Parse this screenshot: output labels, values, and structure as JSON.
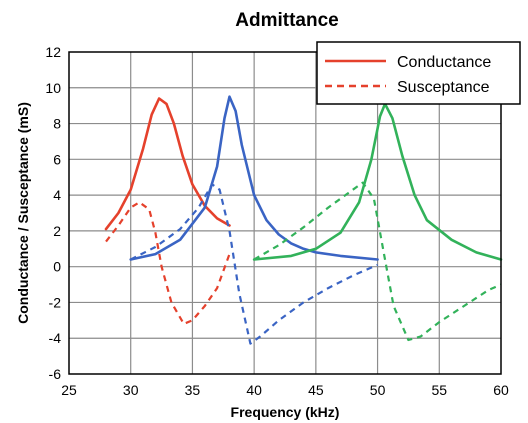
{
  "chart_data": {
    "type": "line",
    "title": "Admittance",
    "xlabel": "Frequency (kHz)",
    "ylabel": "Conductance / Susceptance  (mS)",
    "xlim": [
      25,
      60
    ],
    "ylim": [
      -6,
      12
    ],
    "xticks": [
      25,
      30,
      35,
      40,
      45,
      50,
      55,
      60
    ],
    "yticks": [
      -6,
      -4,
      -2,
      0,
      2,
      4,
      6,
      8,
      10,
      12
    ],
    "grid": true,
    "legend_position": "top-right",
    "legend": [
      {
        "label": "Conductance",
        "style": "solid"
      },
      {
        "label": "Susceptance",
        "style": "dashed"
      }
    ],
    "series": [
      {
        "kind": "conductance",
        "style": "solid",
        "color": "#e5412c",
        "points": [
          [
            28,
            2.1
          ],
          [
            29,
            3.0
          ],
          [
            30,
            4.3
          ],
          [
            31,
            6.6
          ],
          [
            31.7,
            8.5
          ],
          [
            32.3,
            9.4
          ],
          [
            32.9,
            9.1
          ],
          [
            33.5,
            8.0
          ],
          [
            34.2,
            6.2
          ],
          [
            35,
            4.6
          ],
          [
            36,
            3.4
          ],
          [
            37,
            2.7
          ],
          [
            38,
            2.3
          ]
        ]
      },
      {
        "kind": "susceptance",
        "style": "dashed",
        "color": "#e5412c",
        "points": [
          [
            28,
            1.4
          ],
          [
            29,
            2.3
          ],
          [
            30,
            3.3
          ],
          [
            30.7,
            3.6
          ],
          [
            31.5,
            3.2
          ],
          [
            32,
            1.9
          ],
          [
            32.5,
            0.0
          ],
          [
            33.3,
            -2.0
          ],
          [
            34.3,
            -3.2
          ],
          [
            35,
            -3.0
          ],
          [
            36,
            -2.2
          ],
          [
            37,
            -1.2
          ],
          [
            38,
            0.7
          ]
        ]
      },
      {
        "kind": "conductance",
        "style": "solid",
        "color": "#3a64c4",
        "points": [
          [
            30,
            0.4
          ],
          [
            32,
            0.7
          ],
          [
            34,
            1.5
          ],
          [
            36,
            3.3
          ],
          [
            37,
            5.6
          ],
          [
            37.6,
            8.3
          ],
          [
            38,
            9.5
          ],
          [
            38.5,
            8.7
          ],
          [
            39,
            6.8
          ],
          [
            40,
            4.0
          ],
          [
            41,
            2.6
          ],
          [
            42,
            1.8
          ],
          [
            43,
            1.3
          ],
          [
            44,
            1.0
          ],
          [
            45,
            0.8
          ],
          [
            47,
            0.6
          ],
          [
            50,
            0.4
          ]
        ]
      },
      {
        "kind": "susceptance",
        "style": "dashed",
        "color": "#3a64c4",
        "points": [
          [
            30,
            0.4
          ],
          [
            32,
            1.1
          ],
          [
            34,
            2.1
          ],
          [
            35.5,
            3.3
          ],
          [
            36.6,
            4.6
          ],
          [
            37.2,
            4.3
          ],
          [
            38,
            2.0
          ],
          [
            38.8,
            -1.5
          ],
          [
            39.7,
            -4.3
          ],
          [
            40.5,
            -3.9
          ],
          [
            42,
            -3.0
          ],
          [
            44,
            -2.0
          ],
          [
            46,
            -1.2
          ],
          [
            48,
            -0.5
          ],
          [
            50,
            0.1
          ]
        ]
      },
      {
        "kind": "conductance",
        "style": "solid",
        "color": "#32b25a",
        "points": [
          [
            40,
            0.4
          ],
          [
            43,
            0.6
          ],
          [
            45,
            1.0
          ],
          [
            47,
            1.9
          ],
          [
            48.5,
            3.6
          ],
          [
            49.5,
            6.0
          ],
          [
            50.2,
            8.4
          ],
          [
            50.6,
            9.1
          ],
          [
            51.2,
            8.3
          ],
          [
            52,
            6.2
          ],
          [
            53,
            4.0
          ],
          [
            54,
            2.6
          ],
          [
            56,
            1.5
          ],
          [
            58,
            0.8
          ],
          [
            60,
            0.4
          ]
        ]
      },
      {
        "kind": "susceptance",
        "style": "dashed",
        "color": "#32b25a",
        "points": [
          [
            40,
            0.4
          ],
          [
            42,
            1.2
          ],
          [
            44,
            2.2
          ],
          [
            46,
            3.3
          ],
          [
            48,
            4.3
          ],
          [
            48.8,
            4.7
          ],
          [
            49.7,
            3.8
          ],
          [
            50.5,
            0.8
          ],
          [
            51.3,
            -2.2
          ],
          [
            52.5,
            -4.1
          ],
          [
            53.5,
            -3.9
          ],
          [
            55,
            -3.1
          ],
          [
            57,
            -2.2
          ],
          [
            59,
            -1.3
          ],
          [
            60,
            -1.0
          ]
        ]
      }
    ]
  }
}
